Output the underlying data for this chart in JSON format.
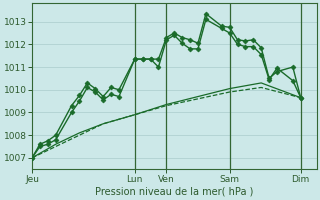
{
  "title": "Pression niveau de la mer( hPa )",
  "bg_color": "#cce8e8",
  "grid_color": "#aacccc",
  "line_color": "#1a6b2a",
  "ylim": [
    1006.5,
    1013.8
  ],
  "yticks": [
    1007,
    1008,
    1009,
    1010,
    1011,
    1012,
    1013
  ],
  "xtick_labels": [
    "Jeu",
    "Lun",
    "Ven",
    "Sam",
    "Dim"
  ],
  "xtick_positions": [
    0,
    13,
    17,
    25,
    34
  ],
  "vlines": [
    13,
    17,
    25,
    34
  ],
  "xlim": [
    0,
    36
  ],
  "series": [
    {
      "x": [
        0,
        1,
        2,
        3,
        5,
        6,
        7,
        8,
        9,
        10,
        11,
        13,
        14,
        15,
        16,
        17,
        18,
        19,
        20,
        21,
        22,
        24,
        25,
        26,
        27,
        28,
        29,
        30,
        31,
        33,
        34
      ],
      "y": [
        1007.0,
        1007.6,
        1007.75,
        1008.0,
        1009.3,
        1009.75,
        1010.3,
        1010.05,
        1009.7,
        1010.1,
        1010.0,
        1011.35,
        1011.35,
        1011.35,
        1011.35,
        1012.3,
        1012.5,
        1012.3,
        1012.2,
        1012.05,
        1013.35,
        1012.8,
        1012.75,
        1012.2,
        1012.15,
        1012.2,
        1011.85,
        1010.5,
        1010.8,
        1011.0,
        1009.65
      ],
      "marker": "D",
      "markersize": 2.5,
      "linewidth": 1.0,
      "linestyle": "-"
    },
    {
      "x": [
        0,
        1,
        2,
        3,
        5,
        6,
        7,
        8,
        9,
        10,
        11,
        13,
        14,
        15,
        16,
        17,
        18,
        19,
        20,
        21,
        22,
        24,
        25,
        26,
        27,
        28,
        29,
        30,
        31,
        33,
        34
      ],
      "y": [
        1007.0,
        1007.5,
        1007.6,
        1007.8,
        1009.0,
        1009.5,
        1010.1,
        1009.9,
        1009.55,
        1009.8,
        1009.7,
        1011.35,
        1011.35,
        1011.35,
        1011.0,
        1012.2,
        1012.4,
        1012.05,
        1011.8,
        1011.8,
        1013.1,
        1012.7,
        1012.5,
        1012.0,
        1011.9,
        1011.9,
        1011.55,
        1010.45,
        1010.95,
        1010.4,
        1009.65
      ],
      "marker": "D",
      "markersize": 2.5,
      "linewidth": 1.0,
      "linestyle": "-"
    },
    {
      "x": [
        0,
        3,
        6,
        9,
        13,
        17,
        21,
        25,
        29,
        34
      ],
      "y": [
        1007.0,
        1007.5,
        1008.0,
        1008.5,
        1008.9,
        1009.3,
        1009.6,
        1009.9,
        1010.1,
        1009.65
      ],
      "marker": null,
      "markersize": 0,
      "linewidth": 0.9,
      "linestyle": "--"
    },
    {
      "x": [
        0,
        3,
        6,
        9,
        13,
        17,
        21,
        25,
        29,
        34
      ],
      "y": [
        1007.0,
        1007.6,
        1008.1,
        1008.5,
        1008.9,
        1009.35,
        1009.7,
        1010.05,
        1010.3,
        1009.65
      ],
      "marker": null,
      "markersize": 0,
      "linewidth": 0.9,
      "linestyle": "-"
    }
  ]
}
